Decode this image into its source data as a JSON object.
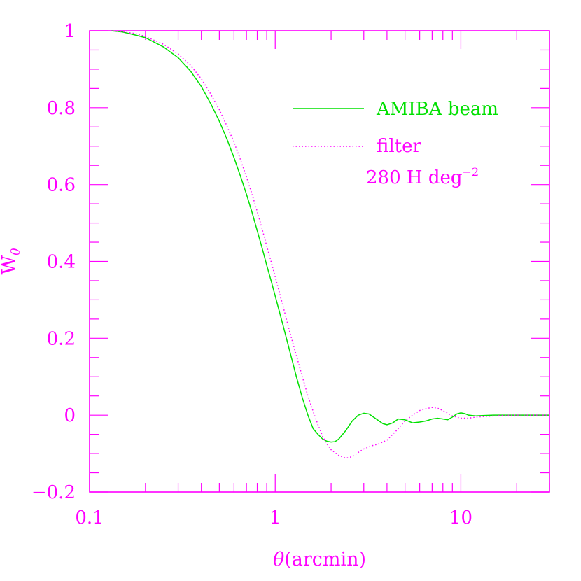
{
  "chart_data": {
    "type": "line",
    "x_scale": "log",
    "xlim": [
      0.1,
      30
    ],
    "ylim": [
      -0.2,
      1
    ],
    "xlabel_symbol": "θ",
    "xlabel_text": "(arcmin)",
    "ylabel_base": "W",
    "ylabel_sub": "θ",
    "x_tick_labels": [
      {
        "value": 0.1,
        "label": "0.1"
      },
      {
        "value": 1,
        "label": "1"
      },
      {
        "value": 10,
        "label": "10"
      }
    ],
    "y_tick_labels": [
      {
        "value": 1,
        "label": "1"
      },
      {
        "value": 0.8,
        "label": "0.8"
      },
      {
        "value": 0.6,
        "label": "0.6"
      },
      {
        "value": 0.4,
        "label": "0.4"
      },
      {
        "value": 0.2,
        "label": "0.2"
      },
      {
        "value": 0,
        "label": "0"
      },
      {
        "value": -0.2,
        "label": "−0.2"
      }
    ],
    "annotation": {
      "text": "280 H deg",
      "superscript": "−2"
    },
    "series": [
      {
        "name": "AMIBA beam",
        "color": "#00e000",
        "style": "solid",
        "x": [
          0.13,
          0.15,
          0.18,
          0.2,
          0.25,
          0.3,
          0.35,
          0.4,
          0.45,
          0.5,
          0.55,
          0.6,
          0.65,
          0.7,
          0.75,
          0.8,
          0.85,
          0.9,
          0.95,
          1.0,
          1.1,
          1.2,
          1.3,
          1.4,
          1.5,
          1.6,
          1.7,
          1.8,
          1.9,
          2.0,
          2.1,
          2.2,
          2.4,
          2.6,
          2.8,
          3.0,
          3.2,
          3.5,
          3.8,
          4.0,
          4.3,
          4.6,
          5.0,
          5.5,
          6.0,
          6.5,
          7.0,
          7.5,
          8.0,
          8.5,
          9.0,
          9.5,
          10.0,
          10.5,
          11.0,
          12.0,
          13.0,
          15.0,
          18.0,
          20.0,
          25.0,
          30.0
        ],
        "y": [
          1.0,
          0.997,
          0.988,
          0.982,
          0.958,
          0.93,
          0.895,
          0.855,
          0.81,
          0.765,
          0.718,
          0.67,
          0.622,
          0.575,
          0.528,
          0.48,
          0.435,
          0.39,
          0.35,
          0.31,
          0.235,
          0.165,
          0.1,
          0.045,
          0.0,
          -0.035,
          -0.05,
          -0.062,
          -0.068,
          -0.07,
          -0.069,
          -0.062,
          -0.04,
          -0.015,
          0.0,
          0.005,
          0.003,
          -0.01,
          -0.022,
          -0.025,
          -0.02,
          -0.01,
          -0.012,
          -0.02,
          -0.018,
          -0.015,
          -0.01,
          -0.008,
          -0.01,
          -0.012,
          -0.005,
          0.003,
          0.006,
          0.004,
          0.0,
          -0.002,
          -0.001,
          0.0,
          0.0,
          0.0,
          0.0,
          0.0
        ]
      },
      {
        "name": "filter",
        "color": "#ff00ff",
        "style": "dotted",
        "x": [
          0.13,
          0.15,
          0.18,
          0.2,
          0.25,
          0.3,
          0.35,
          0.4,
          0.45,
          0.5,
          0.55,
          0.6,
          0.65,
          0.7,
          0.75,
          0.8,
          0.85,
          0.9,
          0.95,
          1.0,
          1.1,
          1.2,
          1.3,
          1.4,
          1.5,
          1.6,
          1.7,
          1.8,
          1.9,
          2.0,
          2.2,
          2.4,
          2.6,
          2.8,
          3.0,
          3.3,
          3.6,
          4.0,
          4.5,
          5.0,
          5.5,
          6.0,
          6.5,
          7.0,
          7.5,
          8.0,
          8.5,
          9.0,
          10.0,
          11.0,
          12.0,
          14.0,
          16.0,
          20.0,
          25.0,
          30.0
        ],
        "y": [
          1.0,
          0.998,
          0.992,
          0.985,
          0.965,
          0.94,
          0.91,
          0.875,
          0.835,
          0.795,
          0.752,
          0.71,
          0.665,
          0.62,
          0.575,
          0.53,
          0.485,
          0.44,
          0.4,
          0.36,
          0.285,
          0.215,
          0.155,
          0.1,
          0.05,
          0.01,
          -0.025,
          -0.055,
          -0.075,
          -0.09,
          -0.105,
          -0.112,
          -0.108,
          -0.097,
          -0.088,
          -0.08,
          -0.075,
          -0.065,
          -0.04,
          -0.015,
          0.0,
          0.012,
          0.017,
          0.02,
          0.018,
          0.012,
          0.005,
          -0.002,
          -0.008,
          -0.008,
          -0.005,
          -0.003,
          -0.001,
          0.0,
          0.0,
          0.0
        ]
      }
    ]
  },
  "colors": {
    "frame": "#ff00ff",
    "beam": "#00e000",
    "filter": "#ff00ff",
    "background": "#ffffff"
  }
}
